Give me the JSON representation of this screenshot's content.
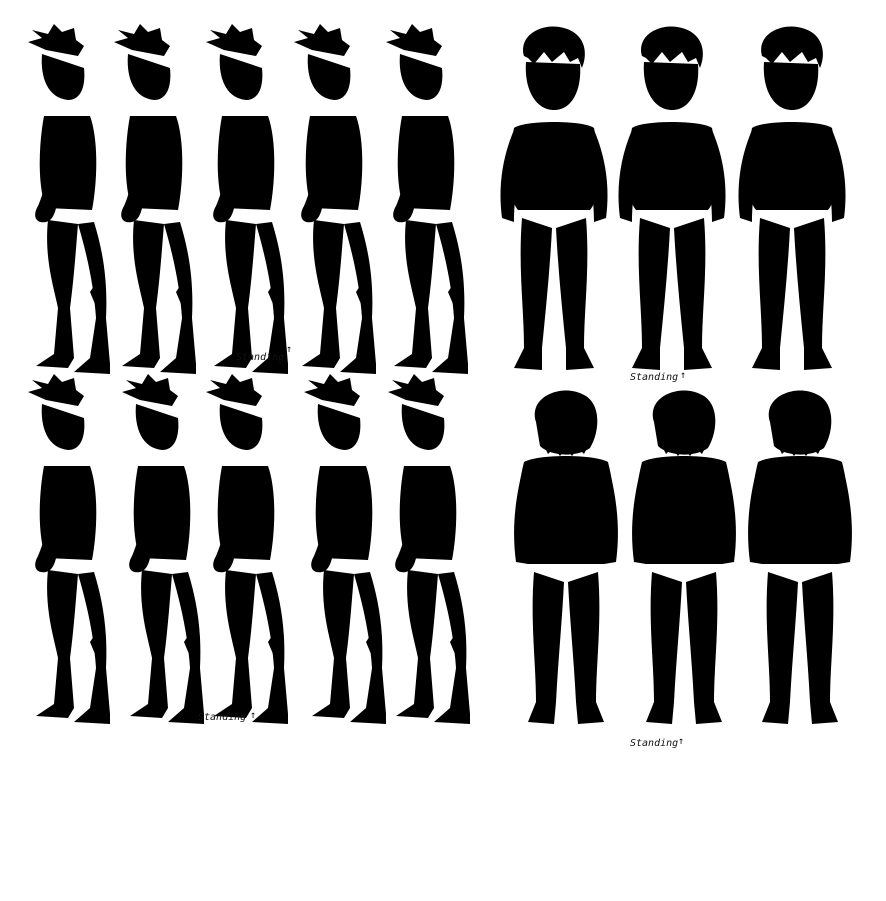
{
  "sheet": {
    "standing_label": "Standing",
    "arrow_glyph": "↑",
    "ink_color": "#111111",
    "paper_color": "#ffffff"
  },
  "panels": [
    {
      "id": "side-walk-right",
      "view": "side-right",
      "frame_count": 5,
      "standing_frame": 3
    },
    {
      "id": "front-idle",
      "view": "front",
      "frame_count": 3,
      "standing_frame": 2
    },
    {
      "id": "side-walk-right-2",
      "view": "side-right-2",
      "frame_count": 5,
      "standing_frame": 3
    },
    {
      "id": "back-idle",
      "view": "back",
      "frame_count": 3,
      "standing_frame": 2
    }
  ]
}
